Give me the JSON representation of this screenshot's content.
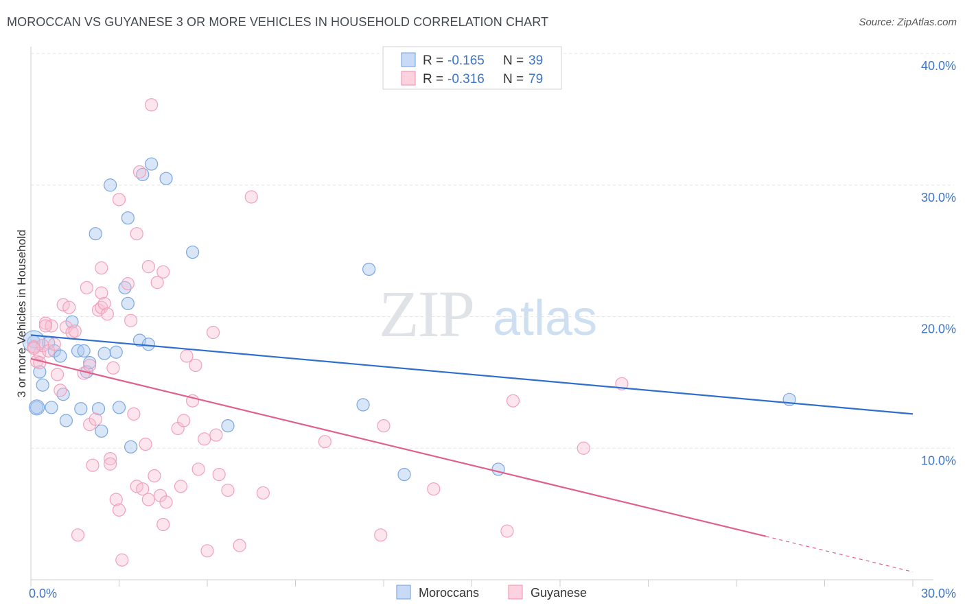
{
  "title": "MOROCCAN VS GUYANESE 3 OR MORE VEHICLES IN HOUSEHOLD CORRELATION CHART",
  "source": "Source: ZipAtlas.com",
  "watermark": {
    "zip": "ZIP",
    "atlas": "atlas"
  },
  "colors": {
    "moroccans": "#6a9ee0",
    "guyanese": "#f08cae",
    "moroccans_line": "#2f6fcc",
    "guyanese_line": "#e0608c",
    "tick_text": "#3d74c4"
  },
  "legend": {
    "rows": [
      {
        "r_label": "R = ",
        "r_value": "-0.165",
        "n_label": "N = ",
        "n_value": "39"
      },
      {
        "r_label": "R = ",
        "r_value": "-0.316",
        "n_label": "N = ",
        "n_value": "79"
      }
    ]
  },
  "chart_data": {
    "type": "scatter",
    "title": "MOROCCAN VS GUYANESE 3 OR MORE VEHICLES IN HOUSEHOLD CORRELATION CHART",
    "xlabel": "",
    "ylabel": "3 or more Vehicles in Household",
    "xlim": [
      0,
      30
    ],
    "ylim": [
      0,
      40
    ],
    "x_tick_labels": [
      "0.0%",
      "30.0%"
    ],
    "y_ticks": [
      10,
      20,
      30,
      40
    ],
    "y_tick_labels": [
      "10.0%",
      "20.0%",
      "30.0%",
      "40.0%"
    ],
    "grid": true,
    "legend_position": "top-center",
    "series": [
      {
        "name": "Moroccans",
        "points": [
          [
            0.1,
            18.1
          ],
          [
            0.2,
            13.1
          ],
          [
            0.3,
            15.8
          ],
          [
            0.4,
            14.8
          ],
          [
            0.6,
            18.0
          ],
          [
            0.7,
            13.1
          ],
          [
            0.8,
            17.4
          ],
          [
            1.0,
            17.0
          ],
          [
            1.1,
            14.1
          ],
          [
            1.2,
            12.1
          ],
          [
            1.4,
            19.6
          ],
          [
            1.6,
            17.4
          ],
          [
            1.7,
            13.0
          ],
          [
            1.8,
            17.4
          ],
          [
            1.9,
            15.8
          ],
          [
            2.0,
            16.5
          ],
          [
            2.2,
            26.3
          ],
          [
            2.3,
            13.0
          ],
          [
            2.4,
            11.3
          ],
          [
            2.5,
            17.2
          ],
          [
            2.7,
            30.0
          ],
          [
            2.9,
            17.3
          ],
          [
            3.0,
            13.1
          ],
          [
            3.2,
            22.2
          ],
          [
            3.3,
            27.5
          ],
          [
            3.3,
            21.0
          ],
          [
            3.4,
            10.1
          ],
          [
            3.7,
            18.2
          ],
          [
            3.8,
            30.8
          ],
          [
            4.0,
            17.9
          ],
          [
            4.1,
            31.6
          ],
          [
            4.6,
            30.5
          ],
          [
            5.5,
            24.9
          ],
          [
            6.7,
            11.7
          ],
          [
            11.3,
            13.3
          ],
          [
            11.5,
            23.6
          ],
          [
            12.7,
            8.0
          ],
          [
            15.9,
            8.4
          ],
          [
            25.8,
            13.7
          ]
        ]
      },
      {
        "name": "Guyanese",
        "points": [
          [
            0.1,
            17.7
          ],
          [
            0.2,
            16.6
          ],
          [
            0.3,
            17.2
          ],
          [
            0.4,
            17.8
          ],
          [
            0.5,
            19.5
          ],
          [
            0.6,
            17.4
          ],
          [
            0.7,
            19.3
          ],
          [
            0.8,
            17.9
          ],
          [
            0.9,
            15.6
          ],
          [
            1.0,
            14.4
          ],
          [
            1.1,
            20.9
          ],
          [
            1.2,
            19.2
          ],
          [
            1.3,
            20.7
          ],
          [
            1.4,
            18.8
          ],
          [
            1.5,
            18.9
          ],
          [
            1.6,
            3.4
          ],
          [
            1.8,
            15.7
          ],
          [
            1.9,
            22.2
          ],
          [
            2.0,
            16.3
          ],
          [
            2.0,
            11.8
          ],
          [
            2.1,
            8.7
          ],
          [
            2.2,
            12.2
          ],
          [
            2.3,
            20.5
          ],
          [
            2.4,
            20.7
          ],
          [
            2.4,
            21.8
          ],
          [
            2.4,
            23.7
          ],
          [
            2.5,
            21.0
          ],
          [
            2.6,
            20.2
          ],
          [
            2.7,
            9.2
          ],
          [
            2.7,
            8.8
          ],
          [
            2.8,
            16.1
          ],
          [
            2.9,
            6.1
          ],
          [
            3.0,
            5.3
          ],
          [
            3.0,
            28.9
          ],
          [
            3.1,
            1.5
          ],
          [
            3.3,
            22.5
          ],
          [
            3.4,
            19.7
          ],
          [
            3.5,
            12.6
          ],
          [
            3.6,
            7.1
          ],
          [
            3.6,
            26.3
          ],
          [
            3.7,
            31.0
          ],
          [
            3.8,
            6.9
          ],
          [
            3.9,
            10.3
          ],
          [
            4.0,
            6.1
          ],
          [
            4.0,
            23.8
          ],
          [
            4.1,
            36.1
          ],
          [
            4.2,
            7.9
          ],
          [
            4.3,
            22.6
          ],
          [
            4.4,
            6.4
          ],
          [
            4.5,
            23.4
          ],
          [
            4.5,
            4.2
          ],
          [
            4.6,
            5.9
          ],
          [
            5.0,
            11.5
          ],
          [
            5.1,
            7.1
          ],
          [
            5.2,
            12.1
          ],
          [
            5.3,
            17.0
          ],
          [
            5.5,
            13.6
          ],
          [
            5.6,
            16.3
          ],
          [
            5.7,
            8.4
          ],
          [
            5.9,
            10.7
          ],
          [
            6.0,
            2.2
          ],
          [
            6.2,
            18.8
          ],
          [
            6.3,
            11.0
          ],
          [
            6.4,
            8.0
          ],
          [
            6.7,
            6.8
          ],
          [
            7.1,
            2.6
          ],
          [
            7.5,
            29.1
          ],
          [
            7.9,
            6.6
          ],
          [
            10.0,
            10.5
          ],
          [
            11.9,
            3.4
          ],
          [
            12.0,
            11.7
          ],
          [
            13.7,
            6.9
          ],
          [
            16.2,
            3.7
          ],
          [
            16.4,
            13.6
          ],
          [
            18.8,
            10.0
          ],
          [
            20.1,
            14.9
          ],
          [
            0.1,
            17.6
          ],
          [
            0.3,
            16.5
          ],
          [
            0.5,
            19.3
          ]
        ]
      }
    ],
    "trend_lines": [
      {
        "name": "Moroccans",
        "x": [
          0,
          30
        ],
        "y": [
          18.6,
          12.6
        ],
        "dashed_from": null
      },
      {
        "name": "Guyanese",
        "x": [
          0,
          30
        ],
        "y": [
          16.8,
          0.6
        ],
        "dashed_from": 25.0
      }
    ]
  },
  "bottom_legend": [
    {
      "label": "Moroccans"
    },
    {
      "label": "Guyanese"
    }
  ]
}
